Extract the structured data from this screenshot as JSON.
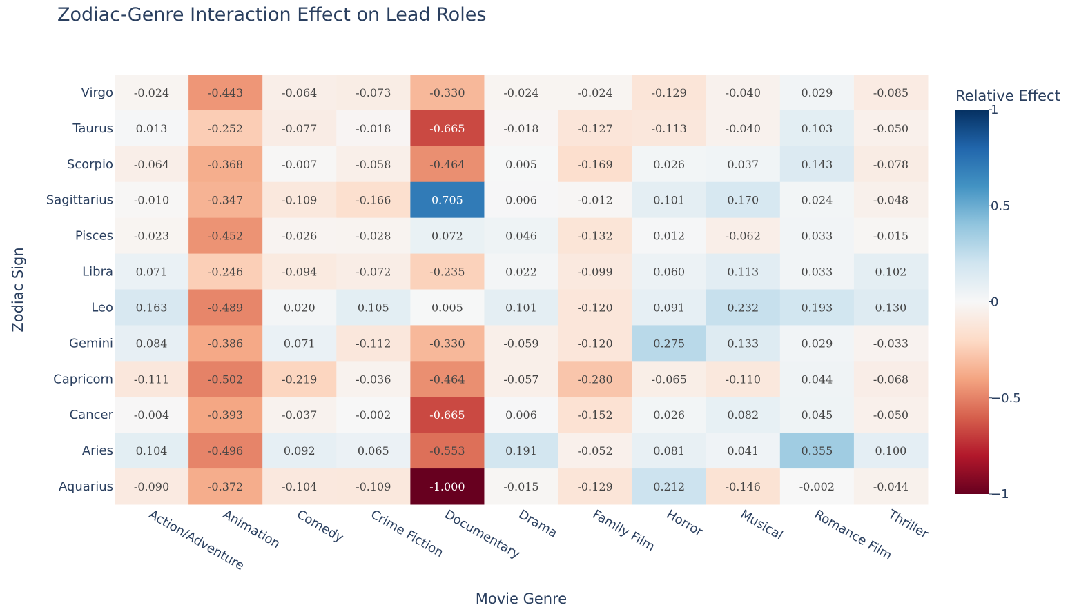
{
  "chart_data": {
    "type": "heatmap",
    "title": "Zodiac-Genre Interaction Effect on Lead Roles",
    "xlabel": "Movie Genre",
    "ylabel": "Zodiac Sign",
    "colorbar_title": "Relative Effect",
    "colorscale": "RdBu",
    "zlim": [
      -1,
      1
    ],
    "colorbar_ticks": [
      {
        "value": 1,
        "label": "1"
      },
      {
        "value": 0.5,
        "label": "0.5"
      },
      {
        "value": 0,
        "label": "0"
      },
      {
        "value": -0.5,
        "label": "−0.5"
      },
      {
        "value": -1,
        "label": "−1"
      }
    ],
    "x": [
      "Action/Adventure",
      "Animation",
      "Comedy",
      "Crime Fiction",
      "Documentary",
      "Drama",
      "Family Film",
      "Horror",
      "Musical",
      "Romance Film",
      "Thriller"
    ],
    "y": [
      "Virgo",
      "Taurus",
      "Scorpio",
      "Sagittarius",
      "Pisces",
      "Libra",
      "Leo",
      "Gemini",
      "Capricorn",
      "Cancer",
      "Aries",
      "Aquarius"
    ],
    "z": [
      [
        -0.024,
        -0.443,
        -0.064,
        -0.073,
        -0.33,
        -0.024,
        -0.024,
        -0.129,
        -0.04,
        0.029,
        -0.085
      ],
      [
        0.013,
        -0.252,
        -0.077,
        -0.018,
        -0.665,
        -0.018,
        -0.127,
        -0.113,
        -0.04,
        0.103,
        -0.05
      ],
      [
        -0.064,
        -0.368,
        -0.007,
        -0.058,
        -0.464,
        0.005,
        -0.169,
        0.026,
        0.037,
        0.143,
        -0.078
      ],
      [
        -0.01,
        -0.347,
        -0.109,
        -0.166,
        0.705,
        0.006,
        -0.012,
        0.101,
        0.17,
        0.024,
        -0.048
      ],
      [
        -0.023,
        -0.452,
        -0.026,
        -0.028,
        0.072,
        0.046,
        -0.132,
        0.012,
        -0.062,
        0.033,
        -0.015
      ],
      [
        0.071,
        -0.246,
        -0.094,
        -0.072,
        -0.235,
        0.022,
        -0.099,
        0.06,
        0.113,
        0.033,
        0.102
      ],
      [
        0.163,
        -0.489,
        0.02,
        0.105,
        0.005,
        0.101,
        -0.12,
        0.091,
        0.232,
        0.193,
        0.13
      ],
      [
        0.084,
        -0.386,
        0.071,
        -0.112,
        -0.33,
        -0.059,
        -0.12,
        0.275,
        0.133,
        0.029,
        -0.033
      ],
      [
        -0.111,
        -0.502,
        -0.219,
        -0.036,
        -0.464,
        -0.057,
        -0.28,
        -0.065,
        -0.11,
        0.044,
        -0.068
      ],
      [
        -0.004,
        -0.393,
        -0.037,
        -0.002,
        -0.665,
        0.006,
        -0.152,
        0.026,
        0.082,
        0.045,
        -0.05
      ],
      [
        0.104,
        -0.496,
        0.092,
        0.065,
        -0.553,
        0.191,
        -0.052,
        0.081,
        0.041,
        0.355,
        0.1
      ],
      [
        -0.09,
        -0.372,
        -0.104,
        -0.109,
        -1.0,
        -0.015,
        -0.129,
        0.212,
        -0.146,
        -0.002,
        -0.044
      ]
    ]
  }
}
